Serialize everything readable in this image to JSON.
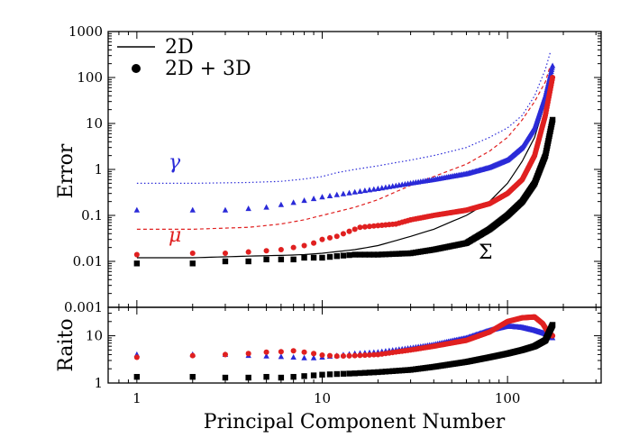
{
  "chart_data": [
    {
      "type": "line",
      "panel": "top",
      "ylabel": "Error",
      "xlabel": "",
      "xscale": "log",
      "yscale": "log",
      "xlim": [
        0.7,
        320
      ],
      "ylim": [
        0.001,
        1000
      ],
      "xticks": [
        1,
        10,
        100
      ],
      "yticks": [
        0.001,
        0.01,
        0.1,
        1,
        10,
        100,
        1000
      ],
      "ytick_labels": [
        "0.001",
        "0.01",
        "0.1",
        "1",
        "10",
        "100",
        "1000"
      ],
      "legend": {
        "position": "top-left",
        "entries": [
          {
            "label": "2D",
            "marker": "line"
          },
          {
            "label": "2D + 3D",
            "marker": "dot"
          }
        ]
      },
      "annotations": [
        {
          "text": "γ",
          "color": "#2a2ad8"
        },
        {
          "text": "μ",
          "color": "#e02020"
        },
        {
          "text": "Σ",
          "color": "#000000"
        }
      ],
      "line_series": [
        {
          "name": "γ 2D",
          "color": "#2a2ad8",
          "style": "dotted",
          "points": [
            [
              1,
              0.5
            ],
            [
              2,
              0.5
            ],
            [
              4,
              0.52
            ],
            [
              6,
              0.55
            ],
            [
              8,
              0.62
            ],
            [
              10,
              0.7
            ],
            [
              12,
              0.85
            ],
            [
              15,
              1.0
            ],
            [
              20,
              1.2
            ],
            [
              30,
              1.6
            ],
            [
              40,
              2.0
            ],
            [
              60,
              3.0
            ],
            [
              80,
              5.0
            ],
            [
              100,
              8.0
            ],
            [
              120,
              15
            ],
            [
              140,
              40
            ],
            [
              160,
              150
            ],
            [
              170,
              350
            ]
          ]
        },
        {
          "name": "μ 2D",
          "color": "#e02020",
          "style": "dashed",
          "points": [
            [
              1,
              0.05
            ],
            [
              2,
              0.05
            ],
            [
              4,
              0.055
            ],
            [
              6,
              0.065
            ],
            [
              8,
              0.08
            ],
            [
              10,
              0.1
            ],
            [
              15,
              0.15
            ],
            [
              20,
              0.22
            ],
            [
              30,
              0.45
            ],
            [
              40,
              0.7
            ],
            [
              60,
              1.3
            ],
            [
              80,
              2.5
            ],
            [
              100,
              5.0
            ],
            [
              120,
              12
            ],
            [
              140,
              30
            ],
            [
              160,
              80
            ],
            [
              170,
              180
            ]
          ]
        },
        {
          "name": "Σ 2D",
          "color": "#000000",
          "style": "solid",
          "points": [
            [
              1,
              0.012
            ],
            [
              2,
              0.012
            ],
            [
              4,
              0.013
            ],
            [
              6,
              0.0135
            ],
            [
              8,
              0.014
            ],
            [
              10,
              0.015
            ],
            [
              15,
              0.018
            ],
            [
              20,
              0.022
            ],
            [
              30,
              0.035
            ],
            [
              40,
              0.05
            ],
            [
              60,
              0.1
            ],
            [
              80,
              0.2
            ],
            [
              100,
              0.5
            ],
            [
              120,
              1.5
            ],
            [
              140,
              5.0
            ],
            [
              160,
              30
            ],
            [
              170,
              80
            ]
          ]
        }
      ],
      "scatter_series": [
        {
          "name": "γ 2D + 3D",
          "color": "#2a2ad8",
          "marker": "triangle",
          "points": [
            [
              1,
              0.13
            ],
            [
              2,
              0.13
            ],
            [
              3,
              0.13
            ],
            [
              4,
              0.14
            ],
            [
              5,
              0.15
            ],
            [
              6,
              0.17
            ],
            [
              7,
              0.19
            ],
            [
              8,
              0.21
            ],
            [
              9,
              0.23
            ],
            [
              10,
              0.25
            ],
            [
              12,
              0.28
            ],
            [
              15,
              0.32
            ],
            [
              20,
              0.38
            ],
            [
              30,
              0.5
            ],
            [
              40,
              0.6
            ],
            [
              60,
              0.8
            ],
            [
              80,
              1.1
            ],
            [
              100,
              1.6
            ],
            [
              120,
              3.0
            ],
            [
              140,
              8.0
            ],
            [
              160,
              40
            ],
            [
              175,
              180
            ]
          ]
        },
        {
          "name": "μ 2D + 3D",
          "color": "#e02020",
          "marker": "circle",
          "points": [
            [
              1,
              0.014
            ],
            [
              2,
              0.015
            ],
            [
              3,
              0.015
            ],
            [
              4,
              0.016
            ],
            [
              5,
              0.017
            ],
            [
              6,
              0.018
            ],
            [
              7,
              0.02
            ],
            [
              8,
              0.022
            ],
            [
              9,
              0.025
            ],
            [
              10,
              0.03
            ],
            [
              12,
              0.035
            ],
            [
              14,
              0.045
            ],
            [
              16,
              0.055
            ],
            [
              20,
              0.06
            ],
            [
              25,
              0.065
            ],
            [
              30,
              0.08
            ],
            [
              40,
              0.1
            ],
            [
              60,
              0.13
            ],
            [
              80,
              0.18
            ],
            [
              100,
              0.3
            ],
            [
              120,
              0.6
            ],
            [
              140,
              2.0
            ],
            [
              160,
              15
            ],
            [
              175,
              100
            ]
          ]
        },
        {
          "name": "Σ 2D + 3D",
          "color": "#000000",
          "marker": "square",
          "points": [
            [
              1,
              0.009
            ],
            [
              2,
              0.009
            ],
            [
              3,
              0.01
            ],
            [
              4,
              0.01
            ],
            [
              5,
              0.011
            ],
            [
              6,
              0.011
            ],
            [
              7,
              0.011
            ],
            [
              8,
              0.012
            ],
            [
              10,
              0.012
            ],
            [
              12,
              0.013
            ],
            [
              15,
              0.014
            ],
            [
              20,
              0.014
            ],
            [
              30,
              0.015
            ],
            [
              40,
              0.018
            ],
            [
              60,
              0.025
            ],
            [
              80,
              0.05
            ],
            [
              100,
              0.1
            ],
            [
              120,
              0.2
            ],
            [
              140,
              0.5
            ],
            [
              160,
              2.0
            ],
            [
              175,
              12
            ]
          ]
        }
      ]
    },
    {
      "type": "scatter",
      "panel": "bottom",
      "ylabel": "Raito",
      "xlabel": "Principal Component Number",
      "xscale": "log",
      "yscale": "log",
      "xlim": [
        0.7,
        320
      ],
      "ylim": [
        1,
        40
      ],
      "xticks": [
        1,
        10,
        100
      ],
      "xtick_labels": [
        "1",
        "10",
        "100"
      ],
      "yticks": [
        1,
        10
      ],
      "ytick_labels": [
        "1",
        "10"
      ],
      "series": [
        {
          "name": "γ ratio",
          "color": "#2a2ad8",
          "marker": "triangle",
          "points": [
            [
              1,
              4.0
            ],
            [
              2,
              4.0
            ],
            [
              3,
              4.0
            ],
            [
              4,
              3.8
            ],
            [
              5,
              3.7
            ],
            [
              6,
              3.6
            ],
            [
              7,
              3.5
            ],
            [
              8,
              3.4
            ],
            [
              9,
              3.4
            ],
            [
              10,
              3.5
            ],
            [
              12,
              3.8
            ],
            [
              15,
              4.2
            ],
            [
              20,
              4.5
            ],
            [
              30,
              5.5
            ],
            [
              40,
              6.5
            ],
            [
              60,
              9.0
            ],
            [
              80,
              13
            ],
            [
              100,
              16
            ],
            [
              120,
              15
            ],
            [
              140,
              13
            ],
            [
              160,
              11
            ],
            [
              175,
              9
            ]
          ]
        },
        {
          "name": "μ ratio",
          "color": "#e02020",
          "marker": "circle",
          "points": [
            [
              1,
              3.5
            ],
            [
              2,
              3.8
            ],
            [
              3,
              4.0
            ],
            [
              4,
              4.2
            ],
            [
              5,
              4.5
            ],
            [
              6,
              4.6
            ],
            [
              7,
              4.8
            ],
            [
              8,
              4.5
            ],
            [
              9,
              4.2
            ],
            [
              10,
              3.9
            ],
            [
              12,
              3.7
            ],
            [
              15,
              3.8
            ],
            [
              20,
              4.0
            ],
            [
              30,
              5.0
            ],
            [
              40,
              6.0
            ],
            [
              60,
              8.0
            ],
            [
              80,
              12
            ],
            [
              100,
              20
            ],
            [
              120,
              24
            ],
            [
              140,
              25
            ],
            [
              155,
              18
            ],
            [
              165,
              12
            ],
            [
              175,
              10
            ]
          ]
        },
        {
          "name": "Σ ratio",
          "color": "#000000",
          "marker": "square",
          "points": [
            [
              1,
              1.35
            ],
            [
              2,
              1.35
            ],
            [
              3,
              1.3
            ],
            [
              4,
              1.3
            ],
            [
              5,
              1.35
            ],
            [
              6,
              1.3
            ],
            [
              7,
              1.35
            ],
            [
              8,
              1.4
            ],
            [
              9,
              1.45
            ],
            [
              10,
              1.5
            ],
            [
              12,
              1.55
            ],
            [
              15,
              1.6
            ],
            [
              20,
              1.7
            ],
            [
              30,
              1.9
            ],
            [
              40,
              2.2
            ],
            [
              60,
              2.8
            ],
            [
              80,
              3.5
            ],
            [
              100,
              4.2
            ],
            [
              120,
              5.0
            ],
            [
              140,
              6.0
            ],
            [
              160,
              8.0
            ],
            [
              175,
              17
            ]
          ]
        }
      ]
    }
  ]
}
